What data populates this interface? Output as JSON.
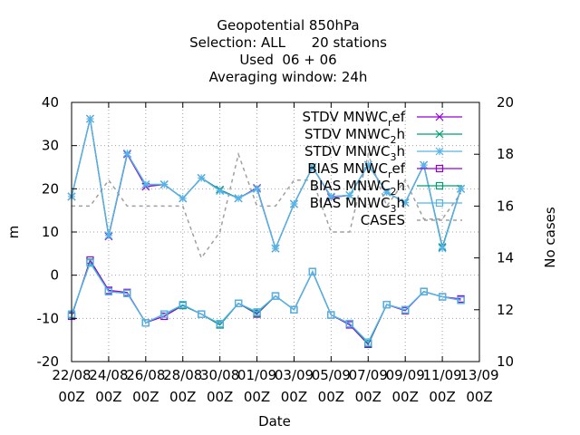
{
  "chart_data": {
    "type": "line",
    "title_lines": [
      "Geopotential 850hPa",
      "Selection: ALL      20 stations",
      "Used  06 + 06",
      "Averaging window: 24h"
    ],
    "xlabel": "Date",
    "ylabel": "m",
    "y2label": "No cases",
    "ylim": [
      -20,
      40
    ],
    "y2lim": [
      10,
      20
    ],
    "grid": true,
    "legend_position": "top-right",
    "x_ticks": [
      {
        "day": 22,
        "l1": "22/08",
        "l2": "00Z"
      },
      {
        "day": 24,
        "l1": "24/08",
        "l2": "00Z"
      },
      {
        "day": 26,
        "l1": "26/08",
        "l2": "00Z"
      },
      {
        "day": 28,
        "l1": "28/08",
        "l2": "00Z"
      },
      {
        "day": 30,
        "l1": "30/08",
        "l2": "00Z"
      },
      {
        "day": 32,
        "l1": "01/09",
        "l2": "00Z"
      },
      {
        "day": 34,
        "l1": "03/09",
        "l2": "00Z"
      },
      {
        "day": 36,
        "l1": "05/09",
        "l2": "00Z"
      },
      {
        "day": 38,
        "l1": "07/09",
        "l2": "00Z"
      },
      {
        "day": 40,
        "l1": "09/09",
        "l2": "00Z"
      },
      {
        "day": 42,
        "l1": "11/09",
        "l2": "00Z"
      },
      {
        "day": 44,
        "l1": "13/09",
        "l2": "00Z"
      }
    ],
    "y_ticks": [
      -20,
      -10,
      0,
      10,
      20,
      30,
      40
    ],
    "y2_ticks": [
      10,
      12,
      14,
      16,
      18,
      20
    ],
    "x": [
      22,
      23,
      24,
      25,
      26,
      27,
      28,
      29,
      30,
      31,
      32,
      33,
      34,
      35,
      36,
      37,
      38,
      39,
      40,
      41,
      42,
      43
    ],
    "series": [
      {
        "name": "STDV MNWC_ref",
        "label_main": "STDV MNWC",
        "label_sub": "r",
        "label_tail": "ef",
        "color": "#9400d3",
        "marker": "x",
        "axis": "y",
        "values": [
          18.2,
          36.2,
          9.0,
          28.0,
          20.5,
          21.0,
          17.8,
          22.5,
          19.8,
          17.8,
          20.2,
          6.2,
          16.5,
          25.0,
          18.0,
          18.5,
          25.5,
          19.2,
          16.8,
          25.5,
          6.5,
          20.0
        ]
      },
      {
        "name": "STDV MNWC_2h",
        "label_main": "STDV MNWC",
        "label_sub": "2",
        "label_tail": "h",
        "color": "#009e73",
        "marker": "x",
        "axis": "y",
        "values": [
          18.2,
          36.2,
          9.2,
          28.2,
          21.0,
          21.0,
          17.8,
          22.5,
          19.8,
          17.8,
          20.0,
          6.2,
          16.5,
          25.0,
          18.2,
          18.5,
          25.5,
          19.2,
          16.8,
          25.5,
          6.5,
          20.0
        ]
      },
      {
        "name": "STDV MNWC_3h",
        "label_main": "STDV MNWC",
        "label_sub": "3",
        "label_tail": "h",
        "color": "#56b4e9",
        "marker": "star",
        "axis": "y",
        "values": [
          18.2,
          36.2,
          9.2,
          28.2,
          21.0,
          21.0,
          17.8,
          22.5,
          19.5,
          17.8,
          20.0,
          6.2,
          16.5,
          25.0,
          18.2,
          18.5,
          25.5,
          19.2,
          16.8,
          25.5,
          6.2,
          20.0
        ]
      },
      {
        "name": "BIAS MNWC_ref",
        "label_main": "BIAS MNWC",
        "label_sub": "r",
        "label_tail": "ef",
        "color": "#9400d3",
        "marker": "square",
        "axis": "y",
        "values": [
          -9.5,
          3.5,
          -3.5,
          -4.0,
          -11.0,
          -9.5,
          -7.0,
          -9.0,
          -11.5,
          -6.5,
          -9.0,
          -4.8,
          -8.0,
          0.8,
          -9.2,
          -11.5,
          -16.0,
          -6.8,
          -8.2,
          -3.8,
          -5.0,
          -5.5
        ]
      },
      {
        "name": "BIAS MNWC_2h",
        "label_main": "BIAS MNWC",
        "label_sub": "2",
        "label_tail": "h",
        "color": "#009e73",
        "marker": "square",
        "axis": "y",
        "values": [
          -9.2,
          3.0,
          -3.8,
          -4.2,
          -11.0,
          -9.0,
          -7.0,
          -9.0,
          -11.5,
          -6.5,
          -8.8,
          -4.8,
          -8.0,
          0.8,
          -9.2,
          -11.2,
          -15.8,
          -6.8,
          -8.0,
          -3.8,
          -5.0,
          -5.8
        ]
      },
      {
        "name": "BIAS MNWC_3h",
        "label_main": "BIAS MNWC",
        "label_sub": "3",
        "label_tail": "h",
        "color": "#56b4e9",
        "marker": "square",
        "axis": "y",
        "values": [
          -9.0,
          2.8,
          -3.8,
          -4.2,
          -11.0,
          -9.0,
          -6.8,
          -9.0,
          -11.2,
          -6.5,
          -8.5,
          -4.8,
          -8.0,
          0.8,
          -9.2,
          -11.2,
          -15.5,
          -6.8,
          -8.0,
          -3.8,
          -5.0,
          -5.8
        ]
      },
      {
        "name": "CASES",
        "label_main": "CASES",
        "label_sub": "",
        "label_tail": "",
        "color": "#a0a0a0",
        "marker": "none",
        "dash": true,
        "axis": "y2",
        "values": [
          16,
          16,
          17,
          16,
          16,
          16,
          16,
          14,
          15,
          18,
          16,
          16,
          17,
          17,
          15,
          15,
          18,
          16,
          17,
          15.5,
          15.5,
          16.5
        ]
      }
    ]
  }
}
